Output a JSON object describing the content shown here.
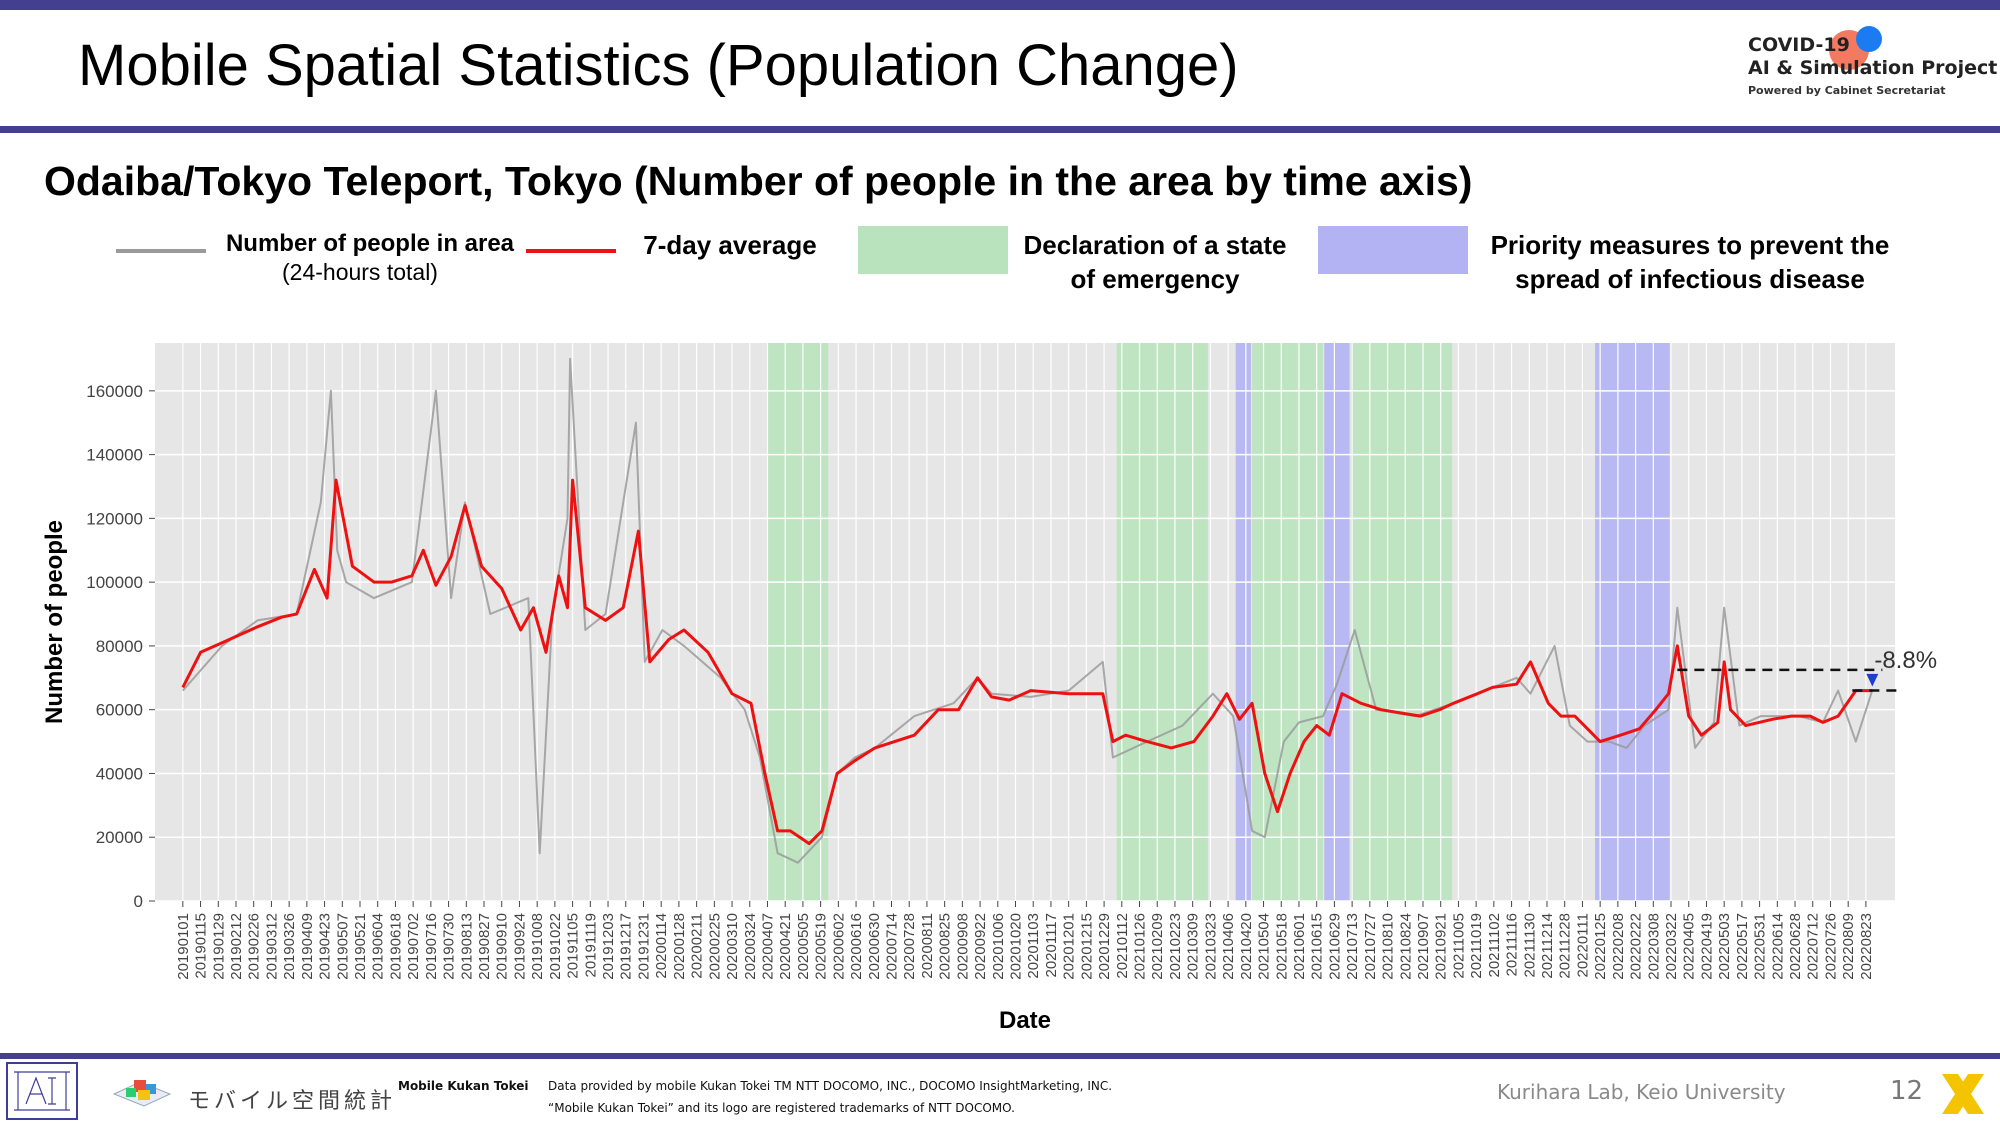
{
  "slide": {
    "title": "Mobile Spatial Statistics (Population Change)",
    "subtitle": "Odaiba/Tokyo Teleport, Tokyo (Number of people in the area by time axis)",
    "brand_line1": "COVID-19",
    "brand_line2": "AI & Simulation Project",
    "brand_line3": "Powered by Cabinet Secretariat",
    "page_number": "12",
    "credit": "Kurihara Lab, Keio University"
  },
  "footer": {
    "logo_text": "モバイル空間統計",
    "product": "Mobile Kukan Tokei",
    "note1": "Data provided by mobile Kukan Tokei TM NTT DOCOMO, INC., DOCOMO InsightMarketing, INC.",
    "note2": "“Mobile Kukan Tokei” and its logo are registered trademarks of NTT DOCOMO."
  },
  "legend": {
    "raw_label": "Number of people in area",
    "raw_sub": "(24-hours total)",
    "avg_label": "7-day average",
    "emergency_label_1": "Declaration of a state",
    "emergency_label_2": "of emergency",
    "priority_label_1": "Priority measures to prevent the",
    "priority_label_2": "spread of infectious disease"
  },
  "colors": {
    "accent_bar": "#443f8f",
    "raw_series": "#9a9a9a",
    "avg_series": "#ee1111",
    "emergency": "#b9e3bd",
    "priority": "#b3b2f3",
    "plot_bg": "#e6e6e6",
    "marker": "#1f3cd6"
  },
  "chart_data": {
    "type": "line",
    "title": "",
    "xlabel": "Date",
    "ylabel": "Number of people",
    "ylim": [
      0,
      175000
    ],
    "yticks": [
      0,
      20000,
      40000,
      60000,
      80000,
      100000,
      120000,
      140000,
      160000
    ],
    "ytick_labels": [
      "0",
      "20000",
      "40000",
      "60000",
      "80000",
      "100000",
      "120000",
      "140000",
      "160000"
    ],
    "xlim": [
      "2018-12-10",
      "2022-09-15"
    ],
    "x_tick_labels": [
      "20190101",
      "20190115",
      "20190129",
      "20190212",
      "20190226",
      "20190312",
      "20190326",
      "20190409",
      "20190423",
      "20190507",
      "20190521",
      "20190604",
      "20190618",
      "20190702",
      "20190716",
      "20190730",
      "20190813",
      "20190827",
      "20190910",
      "20190924",
      "20191008",
      "20191022",
      "20191105",
      "20191119",
      "20191203",
      "20191217",
      "20191231",
      "20200114",
      "20200128",
      "20200211",
      "20200225",
      "20200310",
      "20200324",
      "20200407",
      "20200421",
      "20200505",
      "20200519",
      "20200602",
      "20200616",
      "20200630",
      "20200714",
      "20200728",
      "20200811",
      "20200825",
      "20200908",
      "20200922",
      "20201006",
      "20201020",
      "20201103",
      "20201117",
      "20201201",
      "20201215",
      "20201229",
      "20210112",
      "20210126",
      "20210209",
      "20210223",
      "20210309",
      "20210323",
      "20210406",
      "20210420",
      "20210504",
      "20210518",
      "20210601",
      "20210615",
      "20210629",
      "20210713",
      "20210727",
      "20210810",
      "20210824",
      "20210907",
      "20210921",
      "20211005",
      "20211019",
      "20211102",
      "20211116",
      "20211130",
      "20211214",
      "20211228",
      "20220111",
      "20220125",
      "20220208",
      "20220222",
      "20220308",
      "20220322",
      "20220405",
      "20220419",
      "20220503",
      "20220517",
      "20220531",
      "20220614",
      "20220628",
      "20220712",
      "20220726",
      "20220809",
      "20220823"
    ],
    "grid": true,
    "legend_position": "top",
    "series": [
      {
        "name": "Number of people in area",
        "sub": "(24-hours total)",
        "style": "gray",
        "x": [
          "2019-01-01",
          "2019-02-01",
          "2019-03-01",
          "2019-04-01",
          "2019-04-20",
          "2019-04-28",
          "2019-05-03",
          "2019-05-10",
          "2019-06-01",
          "2019-07-01",
          "2019-07-20",
          "2019-08-01",
          "2019-08-12",
          "2019-09-01",
          "2019-10-01",
          "2019-10-10",
          "2019-10-20",
          "2019-11-01",
          "2019-11-03",
          "2019-11-15",
          "2019-12-01",
          "2019-12-25",
          "2020-01-01",
          "2020-01-15",
          "2020-02-01",
          "2020-03-01",
          "2020-03-20",
          "2020-04-01",
          "2020-04-15",
          "2020-05-01",
          "2020-05-20",
          "2020-06-01",
          "2020-06-15",
          "2020-07-01",
          "2020-08-01",
          "2020-09-01",
          "2020-09-20",
          "2020-10-01",
          "2020-11-01",
          "2020-12-01",
          "2020-12-28",
          "2021-01-05",
          "2021-02-01",
          "2021-03-01",
          "2021-03-25",
          "2021-04-10",
          "2021-04-25",
          "2021-05-05",
          "2021-05-20",
          "2021-06-01",
          "2021-06-20",
          "2021-07-01",
          "2021-07-15",
          "2021-08-01",
          "2021-09-01",
          "2021-10-01",
          "2021-11-01",
          "2021-11-20",
          "2021-12-01",
          "2021-12-20",
          "2022-01-01",
          "2022-01-15",
          "2022-02-01",
          "2022-02-15",
          "2022-03-01",
          "2022-03-20",
          "2022-03-27",
          "2022-04-10",
          "2022-04-25",
          "2022-05-03",
          "2022-05-15",
          "2022-06-01",
          "2022-07-01",
          "2022-07-20",
          "2022-08-01",
          "2022-08-15",
          "2022-08-28"
        ],
        "y": [
          66000,
          80000,
          88000,
          90000,
          125000,
          160000,
          110000,
          100000,
          95000,
          100000,
          160000,
          95000,
          125000,
          90000,
          95000,
          15000,
          90000,
          120000,
          170000,
          85000,
          90000,
          150000,
          75000,
          85000,
          80000,
          70000,
          60000,
          45000,
          15000,
          12000,
          20000,
          40000,
          45000,
          48000,
          58000,
          62000,
          70000,
          65000,
          64000,
          66000,
          75000,
          45000,
          50000,
          55000,
          65000,
          58000,
          22000,
          20000,
          50000,
          56000,
          58000,
          68000,
          85000,
          60000,
          58000,
          62000,
          67000,
          70000,
          65000,
          80000,
          55000,
          50000,
          50000,
          48000,
          55000,
          60000,
          92000,
          48000,
          56000,
          92000,
          55000,
          58000,
          58000,
          56000,
          66000,
          50000,
          66000
        ]
      },
      {
        "name": "7-day average",
        "style": "red",
        "x": [
          "2019-01-01",
          "2019-01-15",
          "2019-02-01",
          "2019-03-01",
          "2019-03-20",
          "2019-04-01",
          "2019-04-15",
          "2019-04-25",
          "2019-05-02",
          "2019-05-15",
          "2019-06-01",
          "2019-06-15",
          "2019-07-01",
          "2019-07-10",
          "2019-07-20",
          "2019-08-01",
          "2019-08-12",
          "2019-08-25",
          "2019-09-10",
          "2019-09-25",
          "2019-10-05",
          "2019-10-15",
          "2019-10-25",
          "2019-11-01",
          "2019-11-05",
          "2019-11-15",
          "2019-12-01",
          "2019-12-15",
          "2019-12-27",
          "2020-01-05",
          "2020-01-20",
          "2020-02-01",
          "2020-02-20",
          "2020-03-10",
          "2020-03-25",
          "2020-04-05",
          "2020-04-15",
          "2020-04-25",
          "2020-05-10",
          "2020-05-20",
          "2020-06-01",
          "2020-06-15",
          "2020-07-01",
          "2020-08-01",
          "2020-08-20",
          "2020-09-05",
          "2020-09-20",
          "2020-10-01",
          "2020-10-15",
          "2020-11-01",
          "2020-12-01",
          "2020-12-28",
          "2021-01-05",
          "2021-01-15",
          "2021-02-01",
          "2021-02-20",
          "2021-03-10",
          "2021-03-25",
          "2021-04-05",
          "2021-04-15",
          "2021-04-25",
          "2021-05-05",
          "2021-05-15",
          "2021-05-25",
          "2021-06-05",
          "2021-06-15",
          "2021-06-25",
          "2021-07-05",
          "2021-07-20",
          "2021-08-05",
          "2021-08-20",
          "2021-09-05",
          "2021-09-20",
          "2021-10-01",
          "2021-10-20",
          "2021-11-01",
          "2021-11-20",
          "2021-12-01",
          "2021-12-15",
          "2021-12-25",
          "2022-01-05",
          "2022-01-15",
          "2022-01-25",
          "2022-02-10",
          "2022-02-25",
          "2022-03-10",
          "2022-03-20",
          "2022-03-27",
          "2022-04-05",
          "2022-04-15",
          "2022-04-28",
          "2022-05-03",
          "2022-05-08",
          "2022-05-20",
          "2022-06-10",
          "2022-06-25",
          "2022-07-10",
          "2022-07-20",
          "2022-08-01",
          "2022-08-15",
          "2022-08-28"
        ],
        "y": [
          67000,
          78000,
          81000,
          86000,
          89000,
          90000,
          104000,
          95000,
          132000,
          105000,
          100000,
          100000,
          102000,
          110000,
          99000,
          108000,
          124000,
          105000,
          98000,
          85000,
          92000,
          78000,
          102000,
          92000,
          132000,
          92000,
          88000,
          92000,
          116000,
          75000,
          82000,
          85000,
          78000,
          65000,
          62000,
          40000,
          22000,
          22000,
          18000,
          22000,
          40000,
          44000,
          48000,
          52000,
          60000,
          60000,
          70000,
          64000,
          63000,
          66000,
          65000,
          65000,
          50000,
          52000,
          50000,
          48000,
          50000,
          58000,
          65000,
          57000,
          62000,
          40000,
          28000,
          40000,
          50000,
          55000,
          52000,
          65000,
          62000,
          60000,
          59000,
          58000,
          60000,
          62000,
          65000,
          67000,
          68000,
          75000,
          62000,
          58000,
          58000,
          54000,
          50000,
          52000,
          54000,
          60000,
          65000,
          80000,
          58000,
          52000,
          56000,
          75000,
          60000,
          55000,
          57000,
          58000,
          58000,
          56000,
          58000,
          66000,
          66000
        ]
      }
    ],
    "emergency_periods": [
      [
        "2020-04-07",
        "2020-05-25"
      ],
      [
        "2021-01-08",
        "2021-03-21"
      ],
      [
        "2021-04-25",
        "2021-06-20"
      ],
      [
        "2021-07-12",
        "2021-09-30"
      ]
    ],
    "priority_periods": [
      [
        "2021-04-12",
        "2021-04-24"
      ],
      [
        "2021-06-21",
        "2021-07-11"
      ],
      [
        "2022-01-21",
        "2022-03-21"
      ]
    ],
    "annotation": {
      "text": "-8.8%",
      "reference_value": 72500,
      "current_value": 66000,
      "from_date": "2022-03-27",
      "to_date": "2022-09-05"
    }
  }
}
